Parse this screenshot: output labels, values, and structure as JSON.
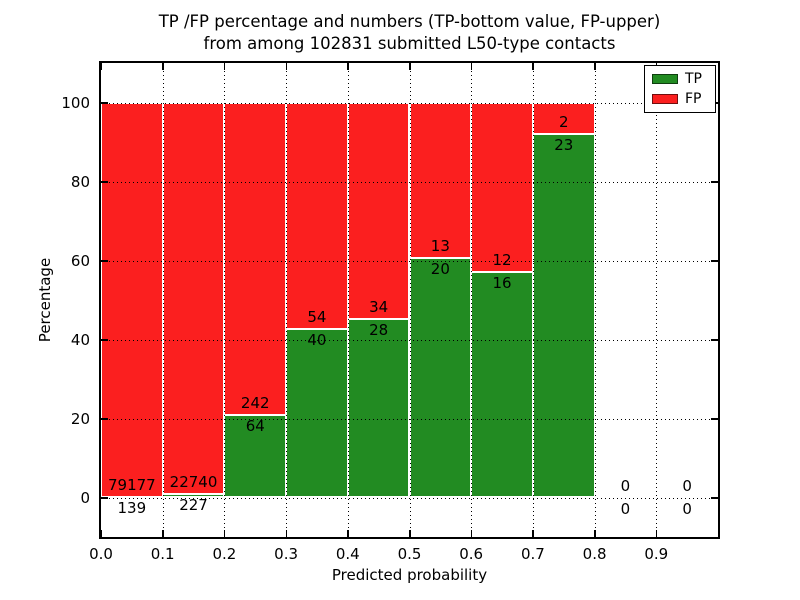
{
  "chart_data": {
    "type": "bar",
    "stacked": true,
    "normalized_to_percent": true,
    "title_line1": "TP /FP percentage and numbers (TP-bottom value, FP-upper)",
    "title_line2": "from among 102831 submitted L50-type contacts",
    "xlabel": "Predicted probability",
    "ylabel": "Percentage",
    "xlim": [
      0.0,
      1.0
    ],
    "ylim": [
      -10,
      110
    ],
    "grid": "dotted",
    "x_tick_labels": [
      "0.0",
      "0.1",
      "0.2",
      "0.3",
      "0.4",
      "0.5",
      "0.6",
      "0.7",
      "0.8",
      "0.9"
    ],
    "y_ticks": [
      0,
      20,
      40,
      60,
      80,
      100
    ],
    "bins": {
      "starts": [
        0.0,
        0.1,
        0.2,
        0.3,
        0.4,
        0.5,
        0.6,
        0.7,
        0.8,
        0.9
      ],
      "width": 0.1
    },
    "series": [
      {
        "name": "TP",
        "color": "#228b22",
        "counts": [
          139,
          227,
          64,
          40,
          28,
          20,
          16,
          23,
          0,
          0
        ]
      },
      {
        "name": "FP",
        "color": "#fb1f1f",
        "counts": [
          79177,
          22740,
          242,
          54,
          34,
          13,
          12,
          2,
          0,
          0
        ]
      }
    ],
    "bar_percentages_tp": [
      0.18,
      0.99,
      20.92,
      42.55,
      45.16,
      60.61,
      57.14,
      92.0,
      0,
      0
    ],
    "annotation_rule": "TP count below boundary, FP count above boundary of each stacked bar",
    "legend": {
      "position": "upper right",
      "entries": [
        {
          "label": "TP",
          "color": "#228b22"
        },
        {
          "label": "FP",
          "color": "#fb1f1f"
        }
      ]
    }
  }
}
